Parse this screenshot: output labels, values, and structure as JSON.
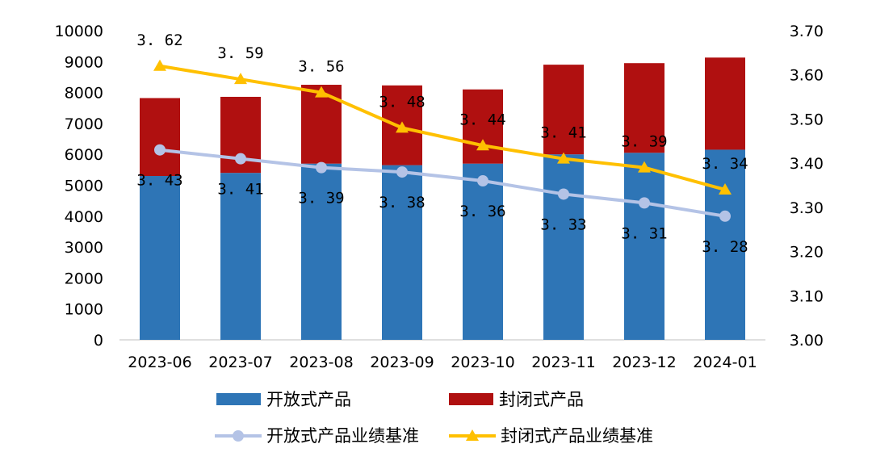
{
  "chart_data": {
    "type": "bar+line",
    "categories": [
      "2023-06",
      "2023-07",
      "2023-08",
      "2023-09",
      "2023-10",
      "2023-11",
      "2023-12",
      "2024-01"
    ],
    "bar_series": [
      {
        "name": "开放式产品",
        "color": "#2E75B6",
        "values": [
          5300,
          5400,
          5700,
          5650,
          5700,
          6000,
          6050,
          6150
        ]
      },
      {
        "name": "封闭式产品",
        "color": "#B01010",
        "values": [
          2520,
          2460,
          2550,
          2580,
          2400,
          2900,
          2900,
          2980
        ]
      }
    ],
    "line_series": [
      {
        "name": "开放式产品业绩基准",
        "color": "#B4C3E6",
        "marker": "circle",
        "values": [
          3.43,
          3.41,
          3.39,
          3.38,
          3.36,
          3.33,
          3.31,
          3.28
        ],
        "labels": [
          "3.43",
          "3.41",
          "3.39",
          "3.38",
          "3.36",
          "3.33",
          "3.31",
          "3.28"
        ]
      },
      {
        "name": "封闭式产品业绩基准",
        "color": "#FFC000",
        "marker": "triangle",
        "values": [
          3.62,
          3.59,
          3.56,
          3.48,
          3.44,
          3.41,
          3.39,
          3.34
        ],
        "labels": [
          "3.62",
          "3.59",
          "3.56",
          "3.48",
          "3.44",
          "3.41",
          "3.39",
          "3.34"
        ]
      }
    ],
    "y_left": {
      "min": 0,
      "max": 10000,
      "step": 1000,
      "ticks": [
        "0",
        "1000",
        "2000",
        "3000",
        "4000",
        "5000",
        "6000",
        "7000",
        "8000",
        "9000",
        "10000"
      ]
    },
    "y_right": {
      "min": 3.0,
      "max": 3.7,
      "step": 0.1,
      "ticks": [
        "3.00",
        "3.10",
        "3.20",
        "3.30",
        "3.40",
        "3.50",
        "3.60",
        "3.70"
      ]
    },
    "legend_position": "bottom",
    "grid": false
  },
  "legend": {
    "items": [
      "开放式产品",
      "封闭式产品",
      "开放式产品业绩基准",
      "封闭式产品业绩基准"
    ]
  }
}
